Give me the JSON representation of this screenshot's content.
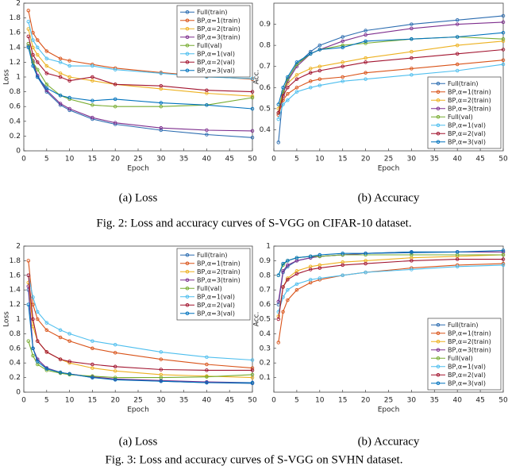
{
  "chart_data": [
    {
      "type": "line",
      "caption": "(a) Loss",
      "xlabel": "Epoch",
      "ylabel": "Loss",
      "xlim": [
        0,
        50
      ],
      "ylim": [
        0,
        2
      ],
      "xticks": [
        0,
        5,
        10,
        15,
        20,
        25,
        30,
        35,
        40,
        45,
        50
      ],
      "yticks": [
        0,
        0.2,
        0.4,
        0.6,
        0.8,
        1,
        1.2,
        1.4,
        1.6,
        1.8,
        2
      ],
      "legend": "upper right",
      "x": [
        1,
        2,
        3,
        5,
        8,
        10,
        15,
        20,
        30,
        40,
        50
      ],
      "series": [
        {
          "name": "Full(train)",
          "color": "#2b6cb0",
          "values": [
            1.42,
            1.2,
            1.0,
            0.8,
            0.62,
            0.55,
            0.43,
            0.36,
            0.28,
            0.22,
            0.18
          ]
        },
        {
          "name": "BP,α=1(train)",
          "color": "#d95319",
          "values": [
            1.9,
            1.6,
            1.5,
            1.35,
            1.25,
            1.22,
            1.17,
            1.12,
            1.06,
            1.01,
            0.97
          ]
        },
        {
          "name": "BP,α=2(train)",
          "color": "#edb120",
          "values": [
            1.65,
            1.4,
            1.3,
            1.15,
            1.05,
            1.0,
            0.95,
            0.9,
            0.84,
            0.78,
            0.74
          ]
        },
        {
          "name": "BP,α=3(train)",
          "color": "#7e2f8e",
          "values": [
            1.45,
            1.22,
            1.02,
            0.82,
            0.64,
            0.57,
            0.45,
            0.38,
            0.31,
            0.28,
            0.27
          ]
        },
        {
          "name": "Full(val)",
          "color": "#77ac30",
          "values": [
            1.45,
            1.2,
            1.1,
            0.9,
            0.75,
            0.7,
            0.62,
            0.6,
            0.6,
            0.62,
            0.72
          ]
        },
        {
          "name": "BP,α=1(val)",
          "color": "#4dbeee",
          "values": [
            1.75,
            1.5,
            1.4,
            1.25,
            1.2,
            1.15,
            1.15,
            1.1,
            1.05,
            1.0,
            0.98
          ]
        },
        {
          "name": "BP,α=2(val)",
          "color": "#a2142f",
          "values": [
            1.55,
            1.3,
            1.2,
            1.05,
            1.0,
            0.95,
            1.0,
            0.9,
            0.88,
            0.82,
            0.8
          ]
        },
        {
          "name": "BP,α=3(val)",
          "color": "#0072bd",
          "values": [
            1.4,
            1.15,
            1.0,
            0.85,
            0.75,
            0.72,
            0.68,
            0.7,
            0.65,
            0.62,
            0.57
          ]
        }
      ]
    },
    {
      "type": "line",
      "caption": "(b) Accuracy",
      "xlabel": "Epoch",
      "ylabel": "Acc.",
      "xlim": [
        0,
        50
      ],
      "ylim": [
        0.3,
        1
      ],
      "xticks": [
        0,
        5,
        10,
        15,
        20,
        25,
        30,
        35,
        40,
        45,
        50
      ],
      "yticks": [
        0.4,
        0.5,
        0.6,
        0.7,
        0.8,
        0.9
      ],
      "legend": "lower right",
      "x": [
        1,
        2,
        3,
        5,
        8,
        10,
        15,
        20,
        30,
        40,
        50
      ],
      "series": [
        {
          "name": "Full(train)",
          "color": "#2b6cb0",
          "values": [
            0.34,
            0.57,
            0.64,
            0.71,
            0.77,
            0.8,
            0.84,
            0.87,
            0.9,
            0.92,
            0.94
          ]
        },
        {
          "name": "BP,α=1(train)",
          "color": "#d95319",
          "values": [
            0.47,
            0.54,
            0.57,
            0.6,
            0.63,
            0.64,
            0.65,
            0.67,
            0.69,
            0.71,
            0.73
          ]
        },
        {
          "name": "BP,α=2(train)",
          "color": "#edb120",
          "values": [
            0.5,
            0.58,
            0.62,
            0.66,
            0.69,
            0.7,
            0.72,
            0.74,
            0.77,
            0.8,
            0.82
          ]
        },
        {
          "name": "BP,α=3(train)",
          "color": "#7e2f8e",
          "values": [
            0.48,
            0.57,
            0.63,
            0.7,
            0.76,
            0.78,
            0.82,
            0.85,
            0.88,
            0.9,
            0.91
          ]
        },
        {
          "name": "Full(val)",
          "color": "#77ac30",
          "values": [
            0.48,
            0.58,
            0.64,
            0.71,
            0.76,
            0.78,
            0.8,
            0.81,
            0.83,
            0.84,
            0.83
          ]
        },
        {
          "name": "BP,α=1(val)",
          "color": "#4dbeee",
          "values": [
            0.45,
            0.52,
            0.54,
            0.58,
            0.6,
            0.61,
            0.63,
            0.64,
            0.66,
            0.68,
            0.71
          ]
        },
        {
          "name": "BP,α=2(val)",
          "color": "#a2142f",
          "values": [
            0.48,
            0.56,
            0.6,
            0.64,
            0.67,
            0.68,
            0.7,
            0.72,
            0.74,
            0.76,
            0.78
          ]
        },
        {
          "name": "BP,α=3(val)",
          "color": "#0072bd",
          "values": [
            0.52,
            0.6,
            0.65,
            0.72,
            0.76,
            0.78,
            0.79,
            0.82,
            0.83,
            0.84,
            0.86
          ]
        }
      ]
    },
    {
      "type": "line",
      "caption": "(a) Loss",
      "xlabel": "Epoch",
      "ylabel": "Loss",
      "xlim": [
        0,
        50
      ],
      "ylim": [
        0,
        2
      ],
      "xticks": [
        0,
        5,
        10,
        15,
        20,
        25,
        30,
        35,
        40,
        45,
        50
      ],
      "yticks": [
        0,
        0.2,
        0.4,
        0.6,
        0.8,
        1,
        1.2,
        1.4,
        1.6,
        1.8,
        2
      ],
      "legend": "upper right",
      "x": [
        1,
        2,
        3,
        5,
        8,
        10,
        15,
        20,
        30,
        40,
        50
      ],
      "series": [
        {
          "name": "Full(train)",
          "color": "#2b6cb0",
          "values": [
            1.4,
            0.6,
            0.45,
            0.33,
            0.27,
            0.25,
            0.2,
            0.18,
            0.15,
            0.13,
            0.12
          ]
        },
        {
          "name": "BP,α=1(train)",
          "color": "#d95319",
          "values": [
            1.8,
            1.2,
            1.0,
            0.85,
            0.75,
            0.7,
            0.6,
            0.54,
            0.45,
            0.38,
            0.33
          ]
        },
        {
          "name": "BP,α=2(train)",
          "color": "#edb120",
          "values": [
            1.5,
            0.9,
            0.7,
            0.55,
            0.45,
            0.4,
            0.33,
            0.29,
            0.24,
            0.22,
            0.2
          ]
        },
        {
          "name": "BP,α=3(train)",
          "color": "#7e2f8e",
          "values": [
            1.45,
            0.6,
            0.45,
            0.33,
            0.27,
            0.25,
            0.21,
            0.18,
            0.16,
            0.14,
            0.13
          ]
        },
        {
          "name": "Full(val)",
          "color": "#77ac30",
          "values": [
            0.7,
            0.5,
            0.38,
            0.3,
            0.26,
            0.24,
            0.22,
            0.2,
            0.2,
            0.21,
            0.24
          ]
        },
        {
          "name": "BP,α=1(val)",
          "color": "#4dbeee",
          "values": [
            1.6,
            1.3,
            1.1,
            0.95,
            0.85,
            0.8,
            0.7,
            0.65,
            0.55,
            0.48,
            0.44
          ]
        },
        {
          "name": "BP,α=2(val)",
          "color": "#a2142f",
          "values": [
            1.6,
            1.0,
            0.7,
            0.55,
            0.45,
            0.42,
            0.38,
            0.35,
            0.31,
            0.3,
            0.3
          ]
        },
        {
          "name": "BP,α=3(val)",
          "color": "#0072bd",
          "values": [
            1.2,
            0.6,
            0.42,
            0.32,
            0.27,
            0.25,
            0.2,
            0.17,
            0.15,
            0.13,
            0.13
          ]
        }
      ]
    },
    {
      "type": "line",
      "caption": "(b) Accuracy",
      "xlabel": "Epoch",
      "ylabel": "Acc.",
      "xlim": [
        0,
        50
      ],
      "ylim": [
        0,
        1
      ],
      "xticks": [
        0,
        5,
        10,
        15,
        20,
        25,
        30,
        35,
        40,
        45,
        50
      ],
      "yticks": [
        0.1,
        0.2,
        0.3,
        0.4,
        0.5,
        0.6,
        0.7,
        0.8,
        0.9,
        1
      ],
      "legend": "lower right",
      "x": [
        1,
        2,
        3,
        5,
        8,
        10,
        15,
        20,
        30,
        40,
        50
      ],
      "series": [
        {
          "name": "Full(train)",
          "color": "#2b6cb0",
          "values": [
            0.6,
            0.82,
            0.86,
            0.9,
            0.92,
            0.93,
            0.94,
            0.95,
            0.955,
            0.96,
            0.96
          ]
        },
        {
          "name": "BP,α=1(train)",
          "color": "#d95319",
          "values": [
            0.34,
            0.55,
            0.63,
            0.7,
            0.75,
            0.77,
            0.8,
            0.82,
            0.85,
            0.87,
            0.88
          ]
        },
        {
          "name": "BP,α=2(train)",
          "color": "#edb120",
          "values": [
            0.52,
            0.72,
            0.78,
            0.83,
            0.86,
            0.87,
            0.89,
            0.9,
            0.92,
            0.93,
            0.94
          ]
        },
        {
          "name": "BP,α=3(train)",
          "color": "#7e2f8e",
          "values": [
            0.62,
            0.83,
            0.87,
            0.9,
            0.92,
            0.93,
            0.94,
            0.95,
            0.96,
            0.96,
            0.96
          ]
        },
        {
          "name": "Full(val)",
          "color": "#77ac30",
          "values": [
            0.8,
            0.87,
            0.9,
            0.92,
            0.93,
            0.93,
            0.94,
            0.94,
            0.94,
            0.94,
            0.94
          ]
        },
        {
          "name": "BP,α=1(val)",
          "color": "#4dbeee",
          "values": [
            0.55,
            0.65,
            0.7,
            0.74,
            0.77,
            0.78,
            0.8,
            0.82,
            0.84,
            0.86,
            0.87
          ]
        },
        {
          "name": "BP,α=2(val)",
          "color": "#a2142f",
          "values": [
            0.5,
            0.72,
            0.77,
            0.81,
            0.84,
            0.85,
            0.87,
            0.88,
            0.9,
            0.91,
            0.91
          ]
        },
        {
          "name": "BP,α=3(val)",
          "color": "#0072bd",
          "values": [
            0.8,
            0.88,
            0.9,
            0.92,
            0.93,
            0.94,
            0.95,
            0.95,
            0.96,
            0.96,
            0.97
          ]
        }
      ]
    }
  ],
  "figure_captions": [
    "Fig. 2: Loss and accuracy curves of S-VGG on CIFAR-10 dataset.",
    "Fig. 3: Loss and accuracy curves of S-VGG on SVHN dataset."
  ]
}
